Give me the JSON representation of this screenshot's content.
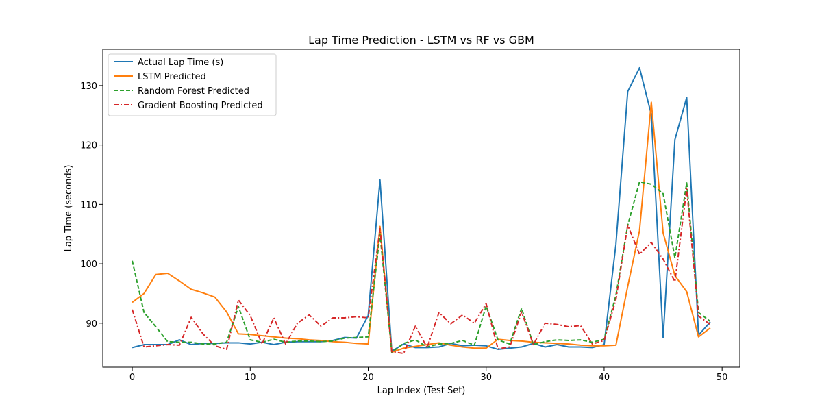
{
  "chart_data": {
    "type": "line",
    "title": "Lap Time Prediction - LSTM vs RF vs GBM",
    "xlabel": "Lap Index (Test Set)",
    "ylabel": "Lap Time (seconds)",
    "xlim": [
      -2.5,
      51.5
    ],
    "ylim": [
      82.6,
      136.1
    ],
    "xticks": [
      0,
      10,
      20,
      30,
      40,
      50
    ],
    "yticks": [
      90,
      100,
      110,
      120,
      130
    ],
    "grid": false,
    "legend_position": "top-left",
    "x": [
      0,
      1,
      2,
      3,
      4,
      5,
      6,
      7,
      8,
      9,
      10,
      11,
      12,
      13,
      14,
      15,
      16,
      17,
      18,
      19,
      20,
      21,
      22,
      23,
      24,
      25,
      26,
      27,
      28,
      29,
      30,
      31,
      32,
      33,
      34,
      35,
      36,
      37,
      38,
      39,
      40,
      41,
      42,
      43,
      44,
      45,
      46,
      47,
      48,
      49
    ],
    "series": [
      {
        "name": "Actual Lap Time (s)",
        "color": "#1f77b4",
        "dash": "solid",
        "values": [
          85.9,
          86.4,
          86.4,
          86.4,
          87.2,
          86.4,
          86.6,
          86.6,
          86.7,
          86.7,
          86.5,
          86.8,
          86.4,
          86.8,
          86.9,
          86.9,
          86.9,
          87.1,
          87.6,
          87.5,
          91.3,
          114.1,
          85.3,
          86.5,
          85.9,
          85.9,
          86.0,
          86.6,
          86.2,
          86.3,
          86.2,
          85.6,
          85.8,
          86.0,
          86.6,
          86.0,
          86.4,
          86.0,
          86.0,
          85.9,
          86.4,
          103.3,
          129.0,
          133.0,
          125.1,
          87.6,
          120.9,
          128.0,
          88.0,
          90.2
        ]
      },
      {
        "name": "LSTM Predicted",
        "color": "#ff7f0e",
        "dash": "solid",
        "values": [
          93.5,
          95.0,
          98.2,
          98.4,
          97.1,
          95.7,
          95.1,
          94.4,
          91.9,
          88.2,
          88.1,
          87.9,
          87.7,
          87.5,
          87.4,
          87.2,
          87.1,
          86.9,
          86.8,
          86.6,
          86.5,
          106.3,
          85.1,
          85.8,
          86.1,
          86.4,
          86.7,
          86.3,
          86.0,
          85.8,
          85.8,
          87.3,
          87.1,
          87.0,
          86.8,
          86.7,
          86.6,
          86.5,
          86.3,
          86.2,
          86.2,
          86.3,
          96.2,
          105.6,
          127.2,
          105.2,
          98.0,
          95.3,
          87.7,
          89.2
        ]
      },
      {
        "name": "Random Forest Predicted",
        "color": "#2ca02c",
        "dash": "dashed",
        "values": [
          100.5,
          91.8,
          89.4,
          86.9,
          86.8,
          86.8,
          86.5,
          86.5,
          86.8,
          92.8,
          87.2,
          86.8,
          87.3,
          86.8,
          87.0,
          87.0,
          86.9,
          87.0,
          87.5,
          87.6,
          87.7,
          105.0,
          85.1,
          86.6,
          87.2,
          86.0,
          86.5,
          86.6,
          87.1,
          86.3,
          92.9,
          87.2,
          86.5,
          92.5,
          86.4,
          86.9,
          87.2,
          87.1,
          87.2,
          86.8,
          87.3,
          94.7,
          106.5,
          113.8,
          113.4,
          111.8,
          101.0,
          113.6,
          91.8,
          90.3
        ]
      },
      {
        "name": "Gradient Boosting Predicted",
        "color": "#d62728",
        "dash": "dashdot",
        "values": [
          92.3,
          86.0,
          86.2,
          86.4,
          86.3,
          91.0,
          88.2,
          86.2,
          85.6,
          93.9,
          91.3,
          86.5,
          90.9,
          86.5,
          90.0,
          91.4,
          89.5,
          90.9,
          90.9,
          91.1,
          90.9,
          105.9,
          85.2,
          84.9,
          89.5,
          85.9,
          91.8,
          89.9,
          91.4,
          90.0,
          93.3,
          85.7,
          86.0,
          91.9,
          86.4,
          90.0,
          89.8,
          89.4,
          89.6,
          86.5,
          87.1,
          94.0,
          106.5,
          101.6,
          103.6,
          100.8,
          97.0,
          112.6,
          91.2,
          89.8
        ]
      }
    ]
  }
}
